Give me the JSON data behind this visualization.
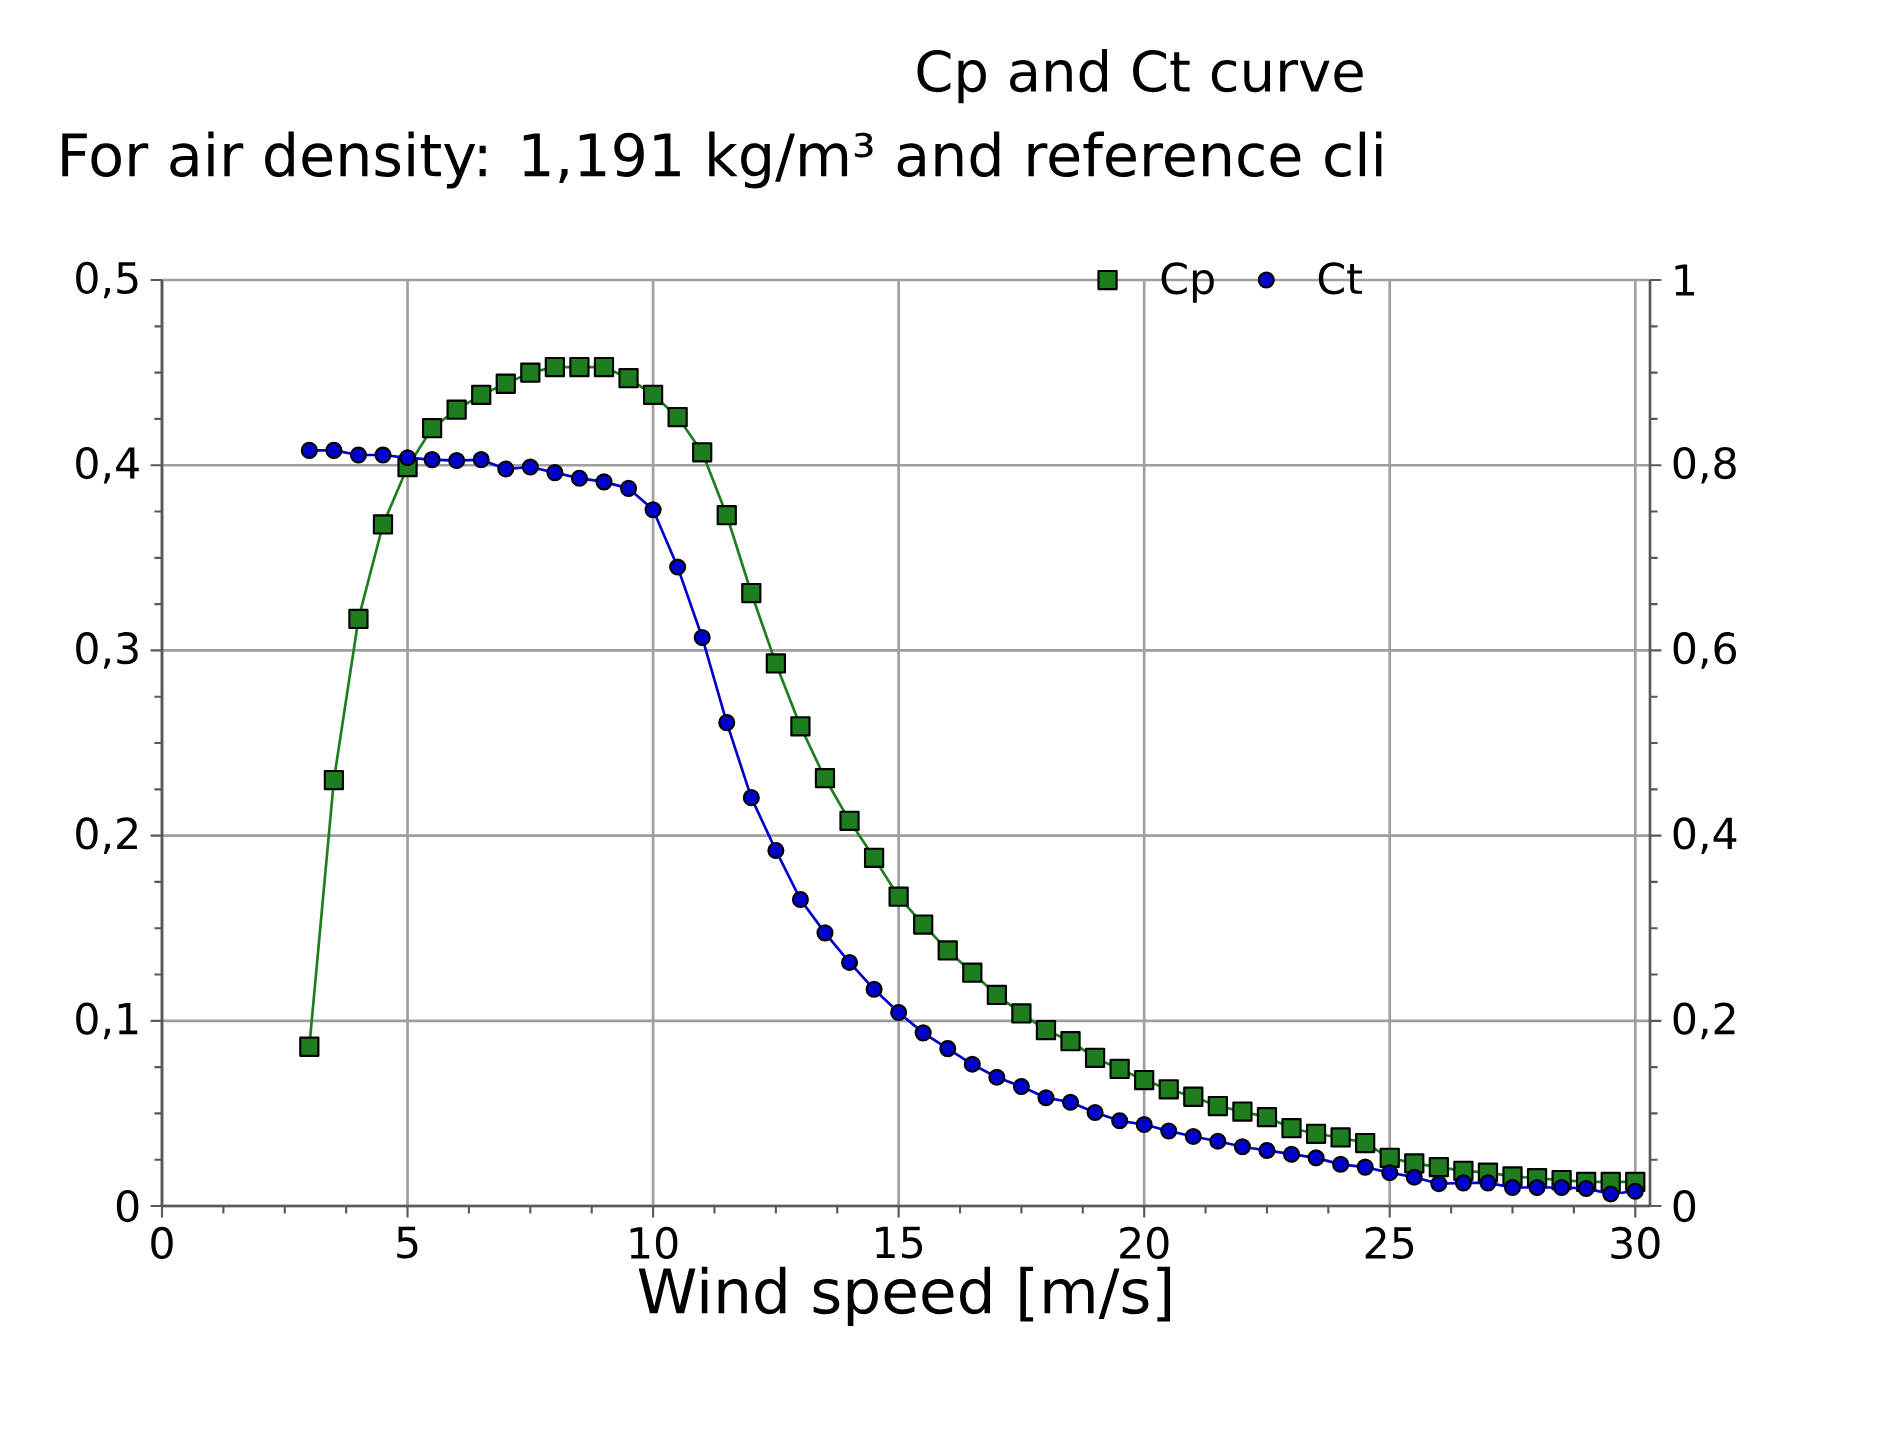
{
  "chart_data": {
    "type": "line",
    "title": "Cp and Ct curve",
    "subtitle": "For air density: 1,191 kg/m³ and reference cli",
    "xlabel": "Wind speed [m/s]",
    "x": [
      3,
      3.5,
      4,
      4.5,
      5,
      5.5,
      6,
      6.5,
      7,
      7.5,
      8,
      8.5,
      9,
      9.5,
      10,
      10.5,
      11,
      11.5,
      12,
      12.5,
      13,
      13.5,
      14,
      14.5,
      15,
      15.5,
      16,
      16.5,
      17,
      17.5,
      18,
      18.5,
      19,
      19.5,
      20,
      20.5,
      21,
      21.5,
      22,
      22.5,
      23,
      23.5,
      24,
      24.5,
      25,
      25.5,
      26,
      26.5,
      27,
      27.5,
      28,
      28.5,
      29,
      29.5,
      30
    ],
    "series": [
      {
        "name": "Cp",
        "color": "#1e7d1e",
        "marker": "square",
        "values": [
          0.086,
          0.23,
          0.317,
          0.368,
          0.399,
          0.42,
          0.43,
          0.438,
          0.444,
          0.45,
          0.453,
          0.453,
          0.453,
          0.447,
          0.438,
          0.426,
          0.407,
          0.373,
          0.331,
          0.293,
          0.259,
          0.231,
          0.208,
          0.188,
          0.167,
          0.152,
          0.138,
          0.126,
          0.114,
          0.104,
          0.095,
          0.089,
          0.08,
          0.074,
          0.068,
          0.063,
          0.059,
          0.054,
          0.051,
          0.048,
          0.042,
          0.039,
          0.037,
          0.034,
          0.026,
          0.023,
          0.021,
          0.019,
          0.018,
          0.016,
          0.015,
          0.014,
          0.013,
          0.013,
          0.013
        ]
      },
      {
        "name": "Ct",
        "color": "#0000cc",
        "marker": "circle",
        "axis": "y2",
        "values": [
          0.816,
          0.816,
          0.811,
          0.811,
          0.808,
          0.806,
          0.805,
          0.806,
          0.796,
          0.798,
          0.792,
          0.786,
          0.782,
          0.775,
          0.752,
          0.69,
          0.614,
          0.522,
          0.441,
          0.384,
          0.331,
          0.295,
          0.263,
          0.234,
          0.209,
          0.187,
          0.17,
          0.153,
          0.139,
          0.129,
          0.117,
          0.112,
          0.101,
          0.092,
          0.088,
          0.081,
          0.075,
          0.07,
          0.064,
          0.06,
          0.056,
          0.052,
          0.045,
          0.042,
          0.036,
          0.031,
          0.024,
          0.025,
          0.025,
          0.02,
          0.02,
          0.02,
          0.019,
          0.013,
          0.016
        ]
      }
    ],
    "xlim": [
      0,
      30.3
    ],
    "xticks": [
      0,
      5,
      10,
      15,
      20,
      25,
      30
    ],
    "ylim": [
      0,
      0.5
    ],
    "yticks": [
      0,
      {
        "value": 0.1,
        "label": "0,1"
      },
      {
        "value": 0.2,
        "label": "0,2"
      },
      {
        "value": 0.3,
        "label": "0,3"
      },
      {
        "value": 0.4,
        "label": "0,4"
      },
      {
        "value": 0.5,
        "label": "0,5"
      }
    ],
    "y2lim": [
      0,
      1
    ],
    "y2ticks": [
      0,
      {
        "value": 0.2,
        "label": "0,2"
      },
      {
        "value": 0.4,
        "label": "0,4"
      },
      {
        "value": 0.6,
        "label": "0,6"
      },
      {
        "value": 0.8,
        "label": "0,8"
      },
      1
    ],
    "grid": true,
    "legend": "top",
    "line_style": "solid"
  }
}
